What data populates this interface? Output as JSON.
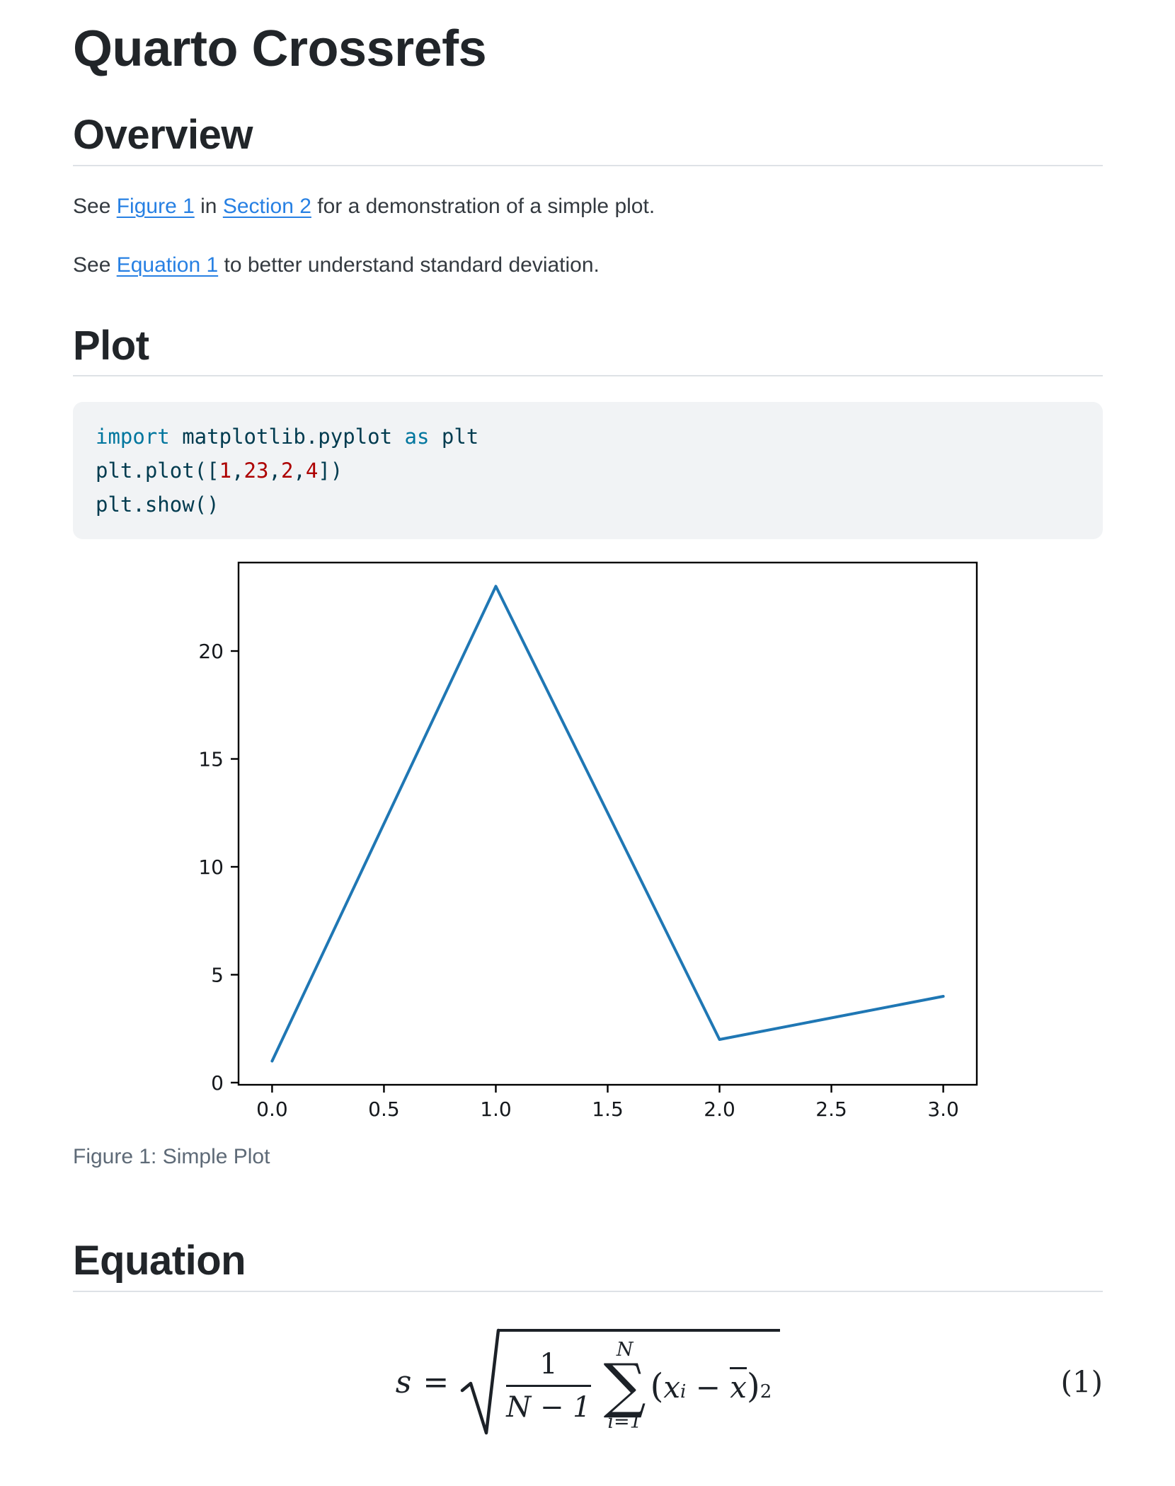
{
  "page": {
    "title": "Quarto Crossrefs"
  },
  "colors": {
    "link": "#2780e3",
    "heading": "#212529",
    "body_text": "#343a40",
    "caption": "#5e6a77",
    "rule": "#dee2e6",
    "code_background": "#f1f3f5",
    "code_base": "#003b4f",
    "code_keyword": "#00769e",
    "code_number": "#ad0000",
    "plot_line": "#1f77b4"
  },
  "sections": {
    "overview": {
      "heading": "Overview",
      "p1": {
        "pre": "See ",
        "link1": "Figure 1",
        "mid": " in ",
        "link2": "Section 2",
        "post": " for a demonstration of a simple plot."
      },
      "p2": {
        "pre": "See ",
        "link1": "Equation 1",
        "post": " to better understand standard deviation."
      }
    },
    "plot": {
      "heading": "Plot",
      "code": {
        "lines": [
          [
            {
              "c": "kw",
              "t": "import"
            },
            {
              "c": "pl",
              "t": " matplotlib.pyplot "
            },
            {
              "c": "kw",
              "t": "as"
            },
            {
              "c": "pl",
              "t": " plt"
            }
          ],
          [
            {
              "c": "pl",
              "t": "plt.plot(["
            },
            {
              "c": "num",
              "t": "1"
            },
            {
              "c": "pl",
              "t": ","
            },
            {
              "c": "num",
              "t": "23"
            },
            {
              "c": "pl",
              "t": ","
            },
            {
              "c": "num",
              "t": "2"
            },
            {
              "c": "pl",
              "t": ","
            },
            {
              "c": "num",
              "t": "4"
            },
            {
              "c": "pl",
              "t": "])"
            }
          ],
          [
            {
              "c": "pl",
              "t": "plt.show()"
            }
          ]
        ]
      }
    },
    "equation": {
      "heading": "Equation",
      "formula": {
        "lhs": "s",
        "rel": "=",
        "frac_num": "1",
        "frac_den": "N − 1",
        "sum_upper": "N",
        "sum_symbol": "∑",
        "sum_lower": "i=1",
        "open_paren": "(",
        "x_var": "x",
        "index_sub": "i",
        "minus": " − ",
        "x_bar": "x",
        "close_paren": ")",
        "exponent": "2"
      },
      "tag": "(1)"
    }
  },
  "figure": {
    "caption": "Figure 1: Simple Plot"
  },
  "chart_data": {
    "type": "line",
    "title": "",
    "xlabel": "",
    "ylabel": "",
    "x": [
      0,
      1,
      2,
      3
    ],
    "y": [
      1,
      23,
      2,
      4
    ],
    "xlim": [
      -0.15,
      3.15
    ],
    "ylim": [
      -0.1,
      24.1
    ],
    "xticks": [
      {
        "v": 0,
        "label": "0.0"
      },
      {
        "v": 0.5,
        "label": "0.5"
      },
      {
        "v": 1,
        "label": "1.0"
      },
      {
        "v": 1.5,
        "label": "1.5"
      },
      {
        "v": 2,
        "label": "2.0"
      },
      {
        "v": 2.5,
        "label": "2.5"
      },
      {
        "v": 3,
        "label": "3.0"
      }
    ],
    "yticks": [
      {
        "v": 0,
        "label": "0"
      },
      {
        "v": 5,
        "label": "5"
      },
      {
        "v": 10,
        "label": "10"
      },
      {
        "v": 15,
        "label": "15"
      },
      {
        "v": 20,
        "label": "20"
      }
    ],
    "grid": false,
    "legend_position": "none",
    "line_color": "#1f77b4"
  }
}
